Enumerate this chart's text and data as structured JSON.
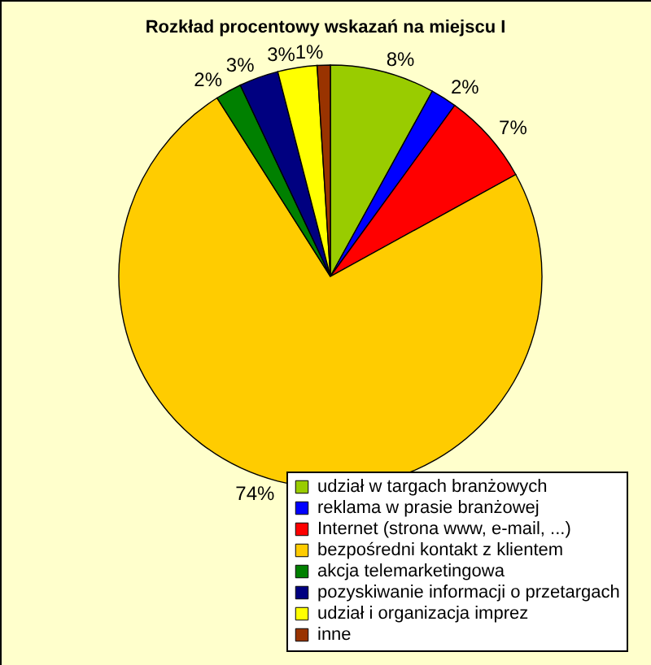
{
  "chart_data": {
    "type": "pie",
    "title": "Rozkład procentowy wskazań na miejscu I",
    "categories": [
      "udział w targach branżowych",
      "reklama w prasie branżowej",
      "Internet (strona www, e-mail, ...)",
      "bezpośredni kontakt z klientem",
      "akcja telemarketingowa",
      "pozyskiwanie informacji o przetargach",
      "udział i organizacja imprez",
      "inne"
    ],
    "values": [
      8,
      2,
      7,
      74,
      2,
      3,
      3,
      1
    ],
    "value_labels": [
      "8%",
      "2%",
      "7%",
      "74%",
      "2%",
      "3%",
      "3%",
      "1%"
    ],
    "colors": [
      "#99cc00",
      "#0000ff",
      "#ff0000",
      "#ffcc00",
      "#008000",
      "#000080",
      "#ffff00",
      "#993300"
    ],
    "legend": "bottom right"
  }
}
